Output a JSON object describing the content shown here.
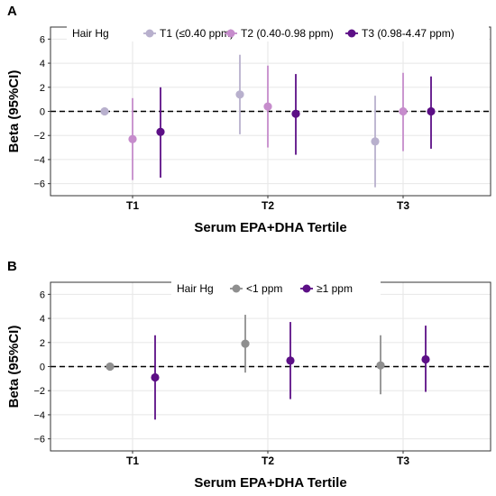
{
  "chart_data": [
    {
      "type": "scatter",
      "panel_label": "A",
      "xlabel": "Serum EPA+DHA Tertile",
      "ylabel": "Beta (95%CI)",
      "categories": [
        "T1",
        "T2",
        "T3"
      ],
      "ylim": [
        -7,
        7
      ],
      "yticks": [
        -6,
        -4,
        -2,
        0,
        2,
        4,
        6
      ],
      "ytick_labels": [
        "−6",
        "−4",
        "−2",
        "0",
        "2",
        "4",
        "6"
      ],
      "reference_line": 0,
      "grid": true,
      "legend": {
        "title": "Hair Hg",
        "position": "top-left inside"
      },
      "series": [
        {
          "name": "T1 (≤0.40 ppm)",
          "color": "#b8b0cd",
          "values": [
            0,
            1.4,
            -2.5
          ],
          "lower": [
            0,
            -1.9,
            -6.3
          ],
          "upper": [
            0,
            4.7,
            1.3
          ]
        },
        {
          "name": "T2 (0.40-0.98 ppm)",
          "color": "#c68ccc",
          "values": [
            -2.3,
            0.4,
            0
          ],
          "lower": [
            -5.7,
            -3.0,
            -3.3
          ],
          "upper": [
            1.1,
            3.8,
            3.2
          ]
        },
        {
          "name": "T3 (0.98-4.47 ppm)",
          "color": "#5c0f86",
          "values": [
            -1.7,
            -0.2,
            0
          ],
          "lower": [
            -5.5,
            -3.6,
            -3.1
          ],
          "upper": [
            2.0,
            3.1,
            2.9
          ]
        }
      ]
    },
    {
      "type": "scatter",
      "panel_label": "B",
      "xlabel": "Serum EPA+DHA Tertile",
      "ylabel": "Beta (95%CI)",
      "categories": [
        "T1",
        "T2",
        "T3"
      ],
      "ylim": [
        -7,
        7
      ],
      "yticks": [
        -6,
        -4,
        -2,
        0,
        2,
        4,
        6
      ],
      "ytick_labels": [
        "−6",
        "−4",
        "−2",
        "0",
        "2",
        "4",
        "6"
      ],
      "reference_line": 0,
      "grid": true,
      "legend": {
        "title": "Hair Hg",
        "position": "top-center inside"
      },
      "series": [
        {
          "name": "<1 ppm",
          "color": "#8f8f8f",
          "values": [
            0,
            1.9,
            0.1
          ],
          "lower": [
            0,
            -0.5,
            -2.3
          ],
          "upper": [
            0,
            4.3,
            2.6
          ]
        },
        {
          "name": "≥1 ppm",
          "color": "#5c0f86",
          "values": [
            -0.9,
            0.5,
            0.6
          ],
          "lower": [
            -4.4,
            -2.7,
            -2.1
          ],
          "upper": [
            2.6,
            3.7,
            3.4
          ]
        }
      ]
    }
  ]
}
